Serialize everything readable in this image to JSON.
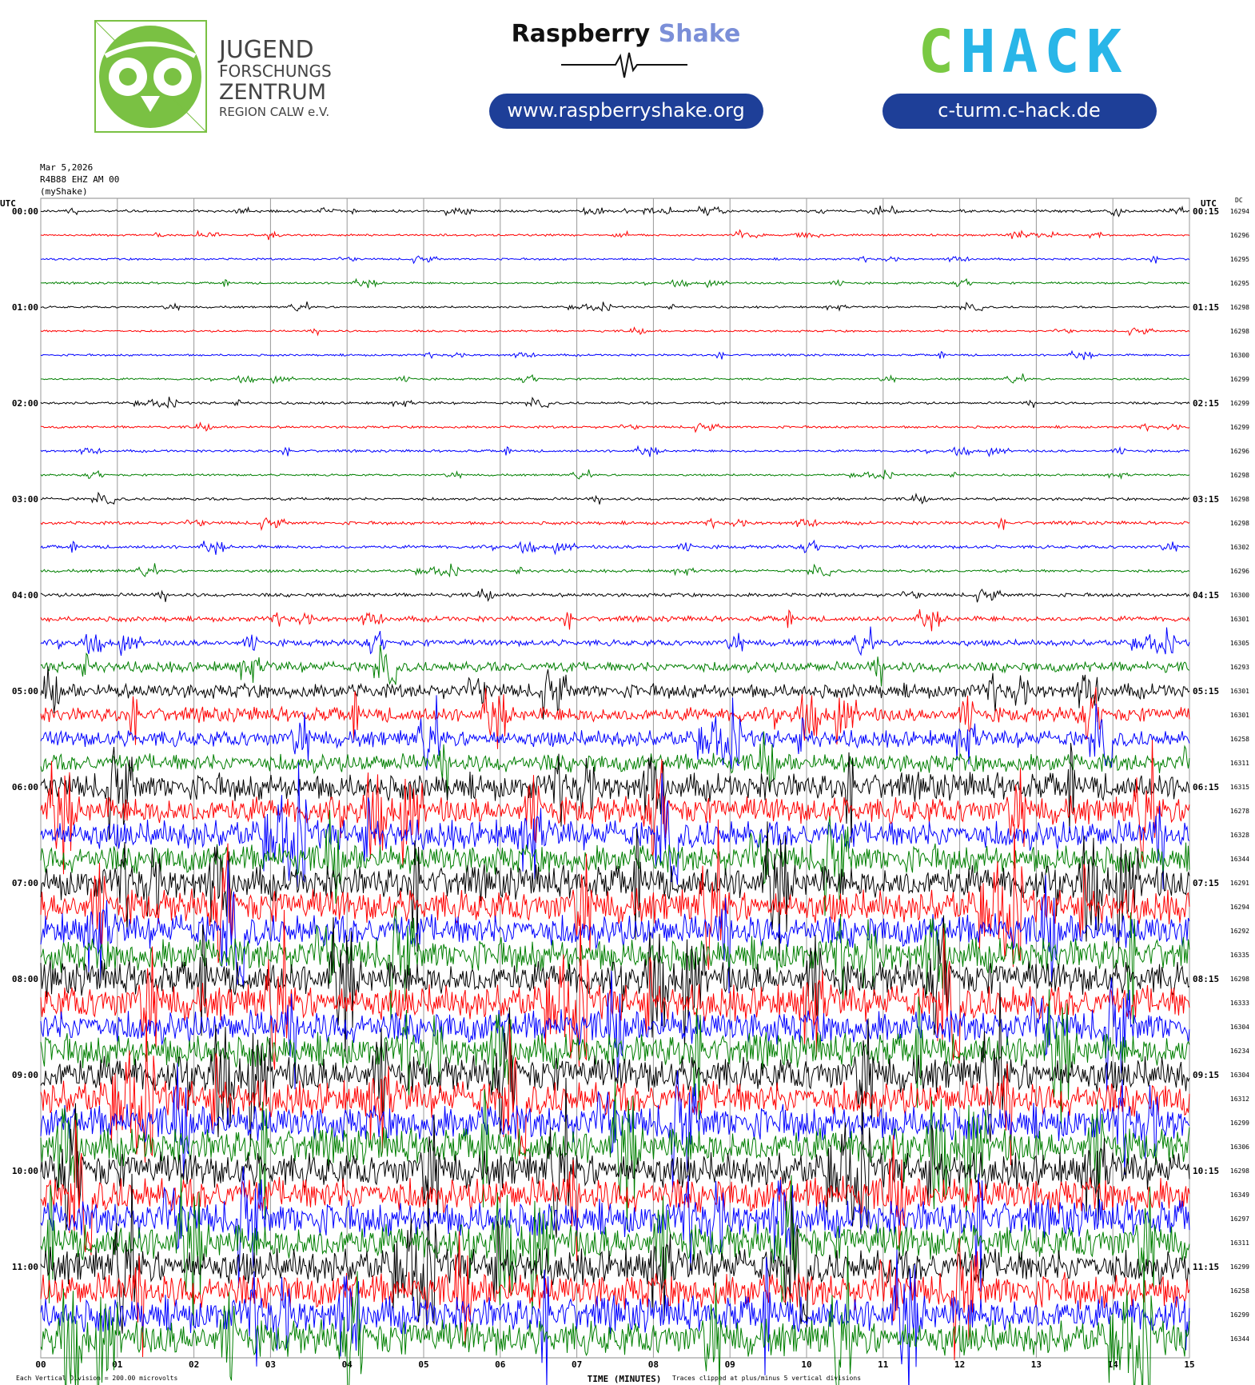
{
  "header": {
    "org_lines": [
      "JUGEND",
      "FORSCHUNGS",
      "ZENTRUM",
      "REGION CALW e.V."
    ],
    "brand_first": "Raspberry",
    "brand_second": "Shake",
    "brand_url": "www.raspberryshake.org",
    "chack_first": "C",
    "chack_rest": "HACK",
    "chack_url": "c-turm.c-hack.de"
  },
  "chart_data": {
    "type": "helicorder",
    "info_lines": [
      "Mar 5,2026",
      "R4B88 EHZ AM 00",
      "(myShake)"
    ],
    "utc_label": "UTC",
    "dc_label": "DC",
    "xlabel": "TIME (MINUTES)",
    "scale_note": "Each Vertical Division =  200.00 microvolts",
    "clip_note": "Traces clipped at plus/minus 5 vertical divisions",
    "division_microvolts": 200,
    "xlim": [
      0,
      15
    ],
    "xticks": [
      {
        "value": 0,
        "label": "00"
      },
      {
        "value": 1,
        "label": "01"
      },
      {
        "value": 2,
        "label": "02"
      },
      {
        "value": 3,
        "label": "03"
      },
      {
        "value": 4,
        "label": "04"
      },
      {
        "value": 5,
        "label": "05"
      },
      {
        "value": 6,
        "label": "06"
      },
      {
        "value": 7,
        "label": "07"
      },
      {
        "value": 8,
        "label": "08"
      },
      {
        "value": 9,
        "label": "09"
      },
      {
        "value": 10,
        "label": "10"
      },
      {
        "value": 11,
        "label": "11"
      },
      {
        "value": 12,
        "label": "12"
      },
      {
        "value": 13,
        "label": "13"
      },
      {
        "value": 14,
        "label": "14"
      },
      {
        "value": 15,
        "label": "15"
      }
    ],
    "left_labels": [
      "00:00",
      "01:00",
      "02:00",
      "03:00",
      "04:00",
      "05:00",
      "06:00",
      "07:00",
      "08:00",
      "09:00",
      "10:00",
      "11:00"
    ],
    "right_labels": [
      "00:15",
      "01:15",
      "02:15",
      "03:15",
      "04:15",
      "05:15",
      "06:15",
      "07:15",
      "08:15",
      "09:15",
      "10:15",
      "11:15"
    ],
    "colors": [
      "#000000",
      "#ff0000",
      "#0000ff",
      "#007f00"
    ],
    "dc": [
      16294,
      16296,
      16295,
      16295,
      16298,
      16298,
      16300,
      16299,
      16299,
      16299,
      16296,
      16298,
      16298,
      16298,
      16302,
      16296,
      16300,
      16301,
      16305,
      16293,
      16301,
      16301,
      16258,
      16311,
      16315,
      16278,
      16328,
      16344,
      16291,
      16294,
      16292,
      16335,
      16298,
      16333,
      16304,
      16234,
      16304,
      16312,
      16299,
      16306,
      16298,
      16349,
      16297,
      16311,
      16299,
      16258,
      16299,
      16344
    ],
    "amplitude": [
      12,
      10,
      10,
      10,
      10,
      10,
      10,
      10,
      12,
      12,
      12,
      10,
      14,
      16,
      16,
      14,
      18,
      25,
      30,
      50,
      70,
      70,
      80,
      90,
      130,
      130,
      140,
      140,
      160,
      160,
      160,
      160,
      160,
      170,
      160,
      160,
      170,
      170,
      170,
      170,
      170,
      170,
      170,
      170,
      170,
      170,
      170,
      170
    ]
  }
}
